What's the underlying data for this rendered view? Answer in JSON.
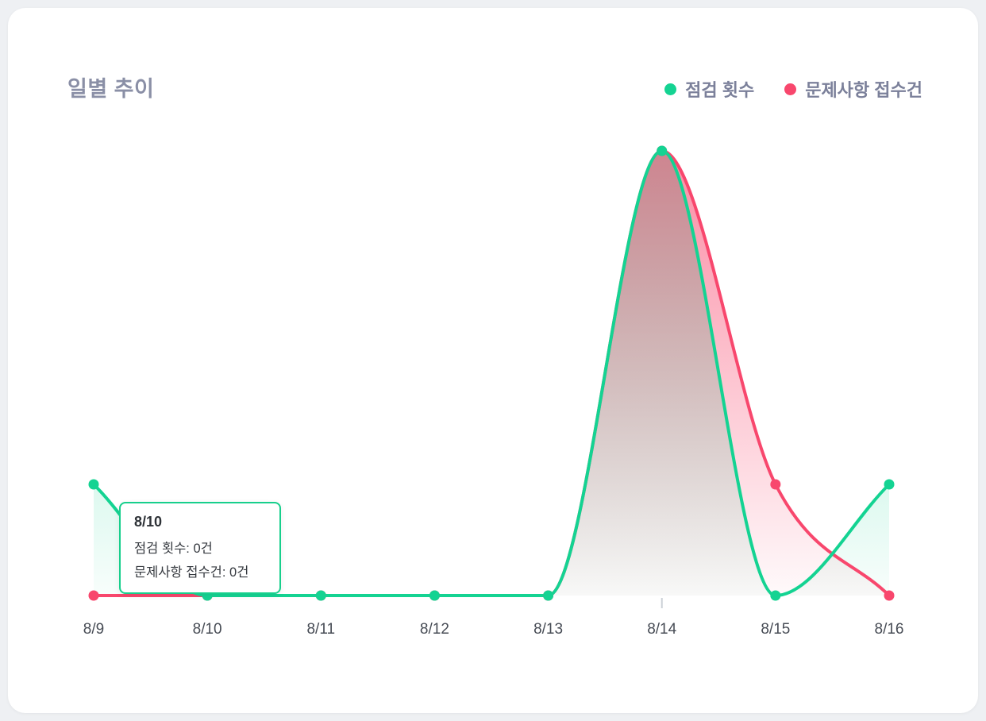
{
  "card": {
    "title": "일별 추이"
  },
  "legend": [
    {
      "label": "점검 횟수",
      "color": "#14D392"
    },
    {
      "label": "문제사항 접수건",
      "color": "#F8476D"
    }
  ],
  "tooltip": {
    "title": "8/10",
    "lines": [
      "점검 횟수: 0건",
      "문제사항 접수건: 0건"
    ]
  },
  "chart_data": {
    "type": "area",
    "title": "일별 추이",
    "categories": [
      "8/9",
      "8/10",
      "8/11",
      "8/12",
      "8/13",
      "8/14",
      "8/15",
      "8/16"
    ],
    "series": [
      {
        "name": "점검 횟수",
        "color": "#14D392",
        "values": [
          2,
          0,
          0,
          0,
          0,
          8,
          0,
          2
        ]
      },
      {
        "name": "문제사항 접수건",
        "color": "#F8476D",
        "values": [
          0,
          0,
          0,
          0,
          0,
          8,
          2,
          0
        ]
      }
    ],
    "ylim": [
      0,
      8
    ],
    "grid": false,
    "legend_position": "top-right",
    "x_tick": "8/14"
  }
}
